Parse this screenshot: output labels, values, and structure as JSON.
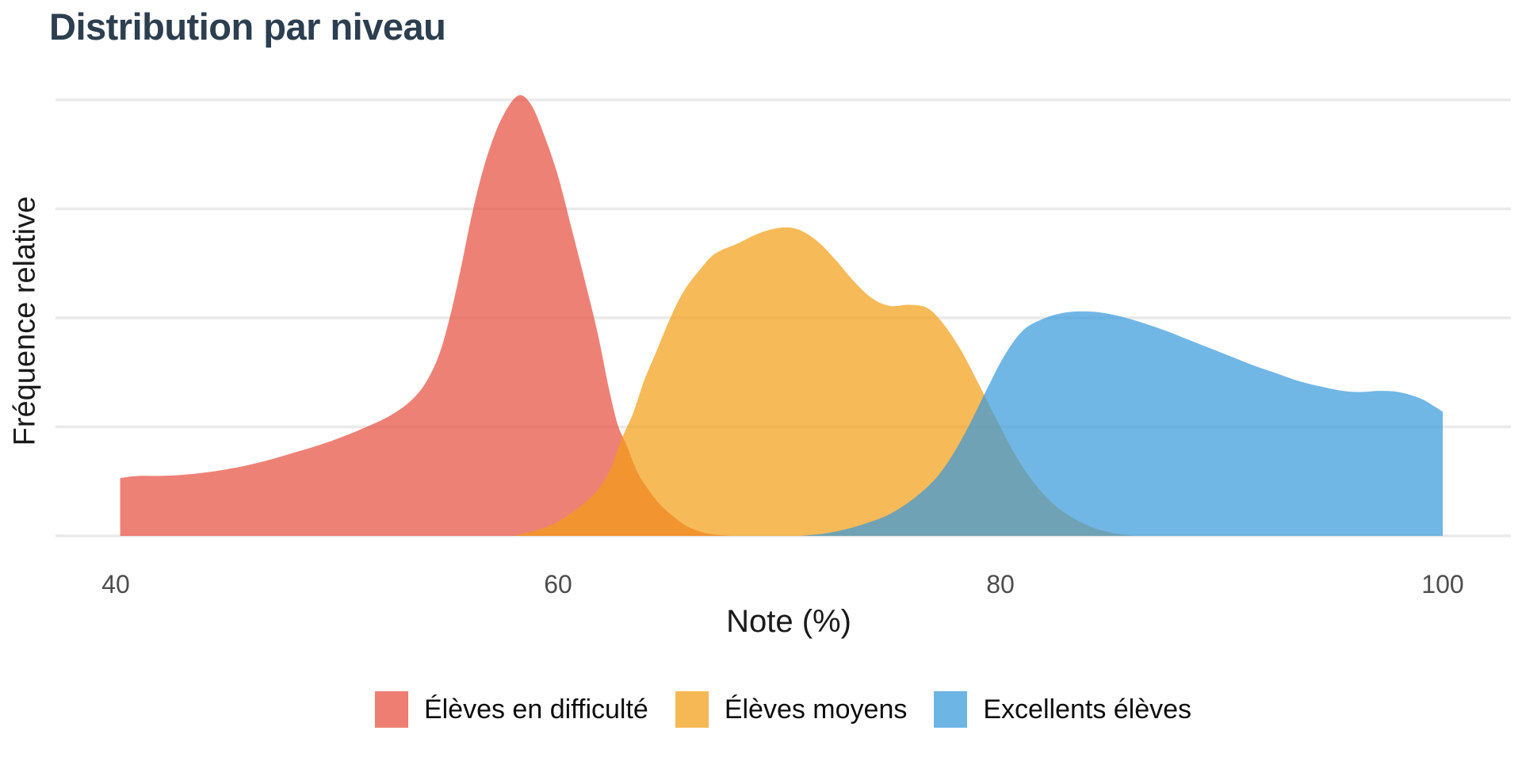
{
  "title": {
    "text": "Distribution par niveau"
  },
  "colors": {
    "title": "#2C3E50",
    "axis_tick_text": "#4D4D4D",
    "axis_title_text": "#1A1A1A",
    "gridline": "#EAEAEA",
    "background": "#FFFFFF",
    "series_red": "#E74C3C",
    "series_orange": "#F39C12",
    "series_blue": "#3498DB"
  },
  "chart_data": {
    "type": "area",
    "variant": "overlapping-density",
    "title": "Distribution par niveau",
    "xlabel": "Note (%)",
    "ylabel": "Fréquence relative",
    "xlim": [
      40,
      100
    ],
    "x_ticks": [
      "40",
      "60",
      "80",
      "100"
    ],
    "x_tick_values": [
      40,
      60,
      80,
      100
    ],
    "y_axis_tick_labels": false,
    "y_gridline_units": [
      0,
      1,
      2,
      3,
      4
    ],
    "grid": "horizontal-only",
    "legend_position": "bottom",
    "fill_opacity": 0.7,
    "note": "y values are relative-frequency units where 1.0 = one gridline spacing; x values are Note (%)",
    "series": [
      {
        "name": "Élèves en difficulté",
        "color": "#E74C3C",
        "points": [
          [
            40.2,
            0.53
          ],
          [
            41,
            0.55
          ],
          [
            42,
            0.55
          ],
          [
            43,
            0.56
          ],
          [
            44,
            0.58
          ],
          [
            45,
            0.61
          ],
          [
            46,
            0.65
          ],
          [
            47,
            0.7
          ],
          [
            48,
            0.76
          ],
          [
            49,
            0.82
          ],
          [
            50,
            0.89
          ],
          [
            51,
            0.97
          ],
          [
            52,
            1.06
          ],
          [
            52.7,
            1.14
          ],
          [
            53.4,
            1.25
          ],
          [
            54,
            1.4
          ],
          [
            54.6,
            1.65
          ],
          [
            55.1,
            2.0
          ],
          [
            55.6,
            2.45
          ],
          [
            56,
            2.85
          ],
          [
            56.4,
            3.2
          ],
          [
            56.9,
            3.55
          ],
          [
            57.5,
            3.85
          ],
          [
            58.2,
            4.04
          ],
          [
            58.8,
            3.95
          ],
          [
            59.4,
            3.66
          ],
          [
            60,
            3.3
          ],
          [
            60.6,
            2.83
          ],
          [
            61.2,
            2.35
          ],
          [
            61.8,
            1.85
          ],
          [
            62.3,
            1.35
          ],
          [
            62.7,
            1.02
          ],
          [
            63.1,
            0.83
          ],
          [
            63.6,
            0.58
          ],
          [
            64.1,
            0.42
          ],
          [
            64.6,
            0.29
          ],
          [
            65.2,
            0.18
          ],
          [
            65.9,
            0.08
          ],
          [
            66.8,
            0.02
          ],
          [
            67.8,
            0
          ]
        ]
      },
      {
        "name": "Élèves moyens",
        "color": "#F39C12",
        "points": [
          [
            58,
            0
          ],
          [
            59,
            0.05
          ],
          [
            59.8,
            0.11
          ],
          [
            60.6,
            0.21
          ],
          [
            61.3,
            0.32
          ],
          [
            61.9,
            0.45
          ],
          [
            62.4,
            0.63
          ],
          [
            62.9,
            0.9
          ],
          [
            63.4,
            1.13
          ],
          [
            63.9,
            1.43
          ],
          [
            64.4,
            1.67
          ],
          [
            65.1,
            2.01
          ],
          [
            65.7,
            2.25
          ],
          [
            66.4,
            2.44
          ],
          [
            67.1,
            2.59
          ],
          [
            68.1,
            2.68
          ],
          [
            68.9,
            2.76
          ],
          [
            69.6,
            2.81
          ],
          [
            70.3,
            2.83
          ],
          [
            71,
            2.8
          ],
          [
            71.8,
            2.69
          ],
          [
            72.6,
            2.52
          ],
          [
            73.4,
            2.33
          ],
          [
            74.2,
            2.18
          ],
          [
            75,
            2.11
          ],
          [
            75.9,
            2.12
          ],
          [
            76.7,
            2.09
          ],
          [
            77.4,
            1.95
          ],
          [
            78.2,
            1.71
          ],
          [
            79,
            1.4
          ],
          [
            79.8,
            1.08
          ],
          [
            80.6,
            0.77
          ],
          [
            81.4,
            0.52
          ],
          [
            82.2,
            0.33
          ],
          [
            83,
            0.2
          ],
          [
            84,
            0.09
          ],
          [
            85,
            0.03
          ],
          [
            86,
            0
          ]
        ]
      },
      {
        "name": "Excellents élèves",
        "color": "#3498DB",
        "points": [
          [
            71,
            0
          ],
          [
            72,
            0.02
          ],
          [
            73,
            0.06
          ],
          [
            74,
            0.12
          ],
          [
            75,
            0.2
          ],
          [
            76,
            0.33
          ],
          [
            77,
            0.51
          ],
          [
            77.8,
            0.73
          ],
          [
            78.6,
            1.02
          ],
          [
            79.4,
            1.35
          ],
          [
            80.2,
            1.66
          ],
          [
            81,
            1.88
          ],
          [
            81.8,
            1.98
          ],
          [
            82.7,
            2.04
          ],
          [
            83.6,
            2.06
          ],
          [
            84.5,
            2.05
          ],
          [
            85.5,
            2.01
          ],
          [
            86.5,
            1.95
          ],
          [
            87.5,
            1.88
          ],
          [
            88.5,
            1.8
          ],
          [
            89.5,
            1.72
          ],
          [
            90.5,
            1.64
          ],
          [
            91.5,
            1.56
          ],
          [
            92.5,
            1.49
          ],
          [
            93.5,
            1.42
          ],
          [
            94.5,
            1.37
          ],
          [
            95.5,
            1.33
          ],
          [
            96.3,
            1.32
          ],
          [
            97.1,
            1.33
          ],
          [
            98,
            1.32
          ],
          [
            99,
            1.26
          ],
          [
            99.6,
            1.19
          ],
          [
            100,
            1.14
          ]
        ]
      }
    ]
  }
}
